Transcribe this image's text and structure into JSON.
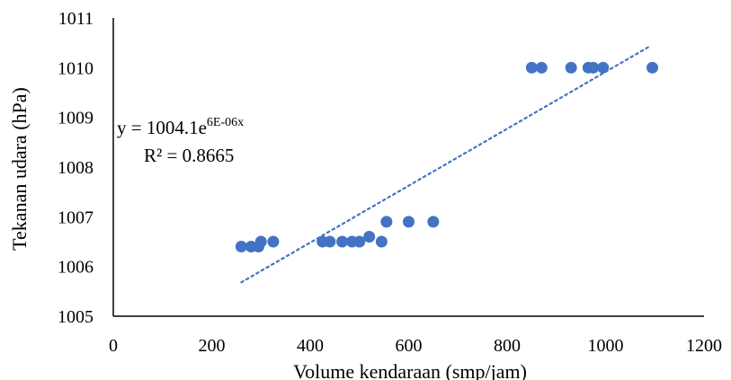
{
  "chart_data": {
    "type": "scatter",
    "title": "",
    "xlabel": "Volume kendaraan (smp/jam)",
    "ylabel": "Tekanan udara (hPa)",
    "xlim": [
      0,
      1200
    ],
    "ylim": [
      1005,
      1011
    ],
    "x_ticks": [
      0,
      200,
      400,
      600,
      800,
      1000,
      1200
    ],
    "y_ticks": [
      1005,
      1006,
      1007,
      1008,
      1009,
      1010,
      1011
    ],
    "grid": false,
    "legend": "none",
    "marker_color": "#4472C4",
    "series": [
      {
        "x": [
          260,
          280,
          295,
          300,
          325,
          425,
          440,
          465,
          485,
          500,
          520,
          545,
          555,
          600,
          650,
          850,
          870,
          930,
          965,
          975,
          995,
          1095
        ],
        "y": [
          1006.4,
          1006.4,
          1006.4,
          1006.5,
          1006.5,
          1006.5,
          1006.5,
          1006.5,
          1006.5,
          1006.5,
          1006.6,
          1006.5,
          1006.9,
          1006.9,
          1006.9,
          1010,
          1010,
          1010,
          1010,
          1010,
          1010,
          1010
        ]
      }
    ],
    "trendline": {
      "type": "exponential",
      "style": "dotted",
      "color": "#4472C4",
      "x_range": [
        260,
        1090
      ],
      "equation_base": "y = 1004.1e",
      "equation_exponent": "6E-06x",
      "r_squared_label": "R² = 0.8665"
    }
  }
}
